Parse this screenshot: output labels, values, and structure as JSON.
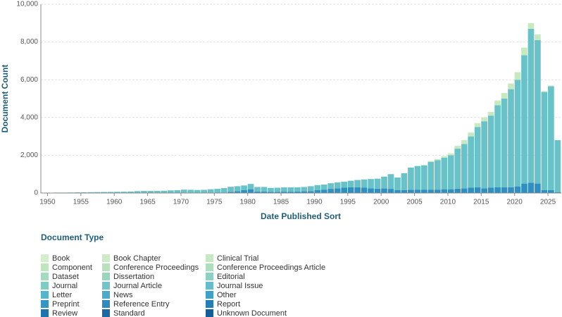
{
  "chart_data": {
    "type": "stacked_bar",
    "x_label": "Date Published Sort",
    "y_label": "Document Count",
    "legend_title": "Document Type",
    "x": [
      1949,
      1950,
      1951,
      1952,
      1953,
      1954,
      1955,
      1956,
      1957,
      1958,
      1959,
      1960,
      1961,
      1962,
      1963,
      1964,
      1965,
      1966,
      1967,
      1968,
      1969,
      1970,
      1971,
      1972,
      1973,
      1974,
      1975,
      1976,
      1977,
      1978,
      1979,
      1980,
      1981,
      1982,
      1983,
      1984,
      1985,
      1986,
      1987,
      1988,
      1989,
      1990,
      1991,
      1992,
      1993,
      1994,
      1995,
      1996,
      1997,
      1998,
      1999,
      2000,
      2001,
      2002,
      2003,
      2004,
      2005,
      2006,
      2007,
      2008,
      2009,
      2010,
      2011,
      2012,
      2013,
      2014,
      2015,
      2016,
      2017,
      2018,
      2019,
      2020,
      2021,
      2022,
      2023,
      2024,
      2025,
      2026
    ],
    "series": [
      {
        "name": "Other",
        "color": "#2e8fc0",
        "values": [
          0,
          0,
          0,
          0,
          0,
          0,
          0,
          0,
          0,
          0,
          0,
          0,
          0,
          0,
          0,
          0,
          0,
          0,
          0,
          0,
          0,
          20,
          20,
          20,
          20,
          20,
          20,
          20,
          60,
          100,
          150,
          200,
          80,
          80,
          60,
          60,
          70,
          70,
          80,
          90,
          100,
          150,
          180,
          220,
          250,
          280,
          300,
          300,
          280,
          250,
          230,
          240,
          220,
          150,
          160,
          170,
          180,
          180,
          180,
          180,
          200,
          200,
          230,
          250,
          280,
          300,
          250,
          280,
          300,
          300,
          300,
          350,
          500,
          550,
          500,
          150,
          150,
          50
        ]
      },
      {
        "name": "Journal Article",
        "color": "#6ac2c9",
        "values": [
          20,
          20,
          25,
          25,
          30,
          35,
          40,
          45,
          50,
          55,
          60,
          65,
          70,
          80,
          100,
          110,
          110,
          115,
          120,
          140,
          150,
          160,
          150,
          140,
          150,
          180,
          200,
          240,
          270,
          260,
          250,
          280,
          240,
          240,
          210,
          220,
          230,
          230,
          220,
          230,
          260,
          270,
          270,
          300,
          310,
          320,
          350,
          390,
          440,
          490,
          530,
          630,
          780,
          670,
          890,
          1180,
          1240,
          1280,
          1470,
          1560,
          1670,
          1800,
          2120,
          2350,
          2720,
          3200,
          3550,
          3820,
          4350,
          4700,
          5200,
          5650,
          6800,
          8150,
          7600,
          5200,
          5500,
          2750
        ]
      },
      {
        "name": "Book Chapter",
        "color": "#c7e9c0",
        "values": [
          0,
          0,
          0,
          0,
          0,
          0,
          0,
          0,
          0,
          0,
          0,
          0,
          0,
          0,
          0,
          0,
          0,
          0,
          0,
          0,
          0,
          0,
          0,
          0,
          0,
          0,
          0,
          0,
          0,
          0,
          0,
          0,
          0,
          0,
          0,
          0,
          0,
          0,
          0,
          0,
          0,
          0,
          0,
          0,
          0,
          0,
          0,
          0,
          0,
          0,
          0,
          0,
          0,
          0,
          0,
          0,
          30,
          40,
          50,
          60,
          80,
          100,
          150,
          200,
          200,
          200,
          200,
          200,
          250,
          300,
          300,
          400,
          400,
          300,
          300,
          50,
          50,
          0
        ]
      }
    ],
    "legend": [
      {
        "name": "Book",
        "color": "#d4eecb"
      },
      {
        "name": "Book Chapter",
        "color": "#cdebc6"
      },
      {
        "name": "Clinical Trial",
        "color": "#c6e8c2"
      },
      {
        "name": "Component",
        "color": "#bfe5bf"
      },
      {
        "name": "Conference Proceedings",
        "color": "#b7e2bd"
      },
      {
        "name": "Conference Proceedings Article",
        "color": "#aedfbd"
      },
      {
        "name": "Dataset",
        "color": "#a4dbbe"
      },
      {
        "name": "Dissertation",
        "color": "#99d6c0"
      },
      {
        "name": "Editorial",
        "color": "#8dd1c2"
      },
      {
        "name": "Journal",
        "color": "#80cbc4"
      },
      {
        "name": "Journal Article",
        "color": "#72c5c8"
      },
      {
        "name": "Journal Issue",
        "color": "#65bdcb"
      },
      {
        "name": "Letter",
        "color": "#58b4cc"
      },
      {
        "name": "News",
        "color": "#4babcb"
      },
      {
        "name": "Other",
        "color": "#40a1c8"
      },
      {
        "name": "Preprint",
        "color": "#3696c3"
      },
      {
        "name": "Reference Entry",
        "color": "#2d8bbd"
      },
      {
        "name": "Report",
        "color": "#257fb6"
      },
      {
        "name": "Review",
        "color": "#1f73ad"
      },
      {
        "name": "Standard",
        "color": "#1a68a4"
      },
      {
        "name": "Unknown Document",
        "color": "#155d9a"
      }
    ],
    "xlim": [
      1949,
      2027
    ],
    "xticks": [
      1950,
      1955,
      1960,
      1965,
      1970,
      1975,
      1980,
      1985,
      1990,
      1995,
      2000,
      2005,
      2010,
      2015,
      2020,
      2025
    ],
    "ylim": [
      0,
      10000
    ],
    "yticks": [
      0,
      {
        "value": 2000,
        "label": "2,000"
      },
      {
        "value": 4000,
        "label": "4,000"
      },
      {
        "value": 6000,
        "label": "6,000"
      },
      {
        "value": 8000,
        "label": "8,000"
      },
      {
        "value": 10000,
        "label": "10,000"
      }
    ],
    "grid": true
  }
}
